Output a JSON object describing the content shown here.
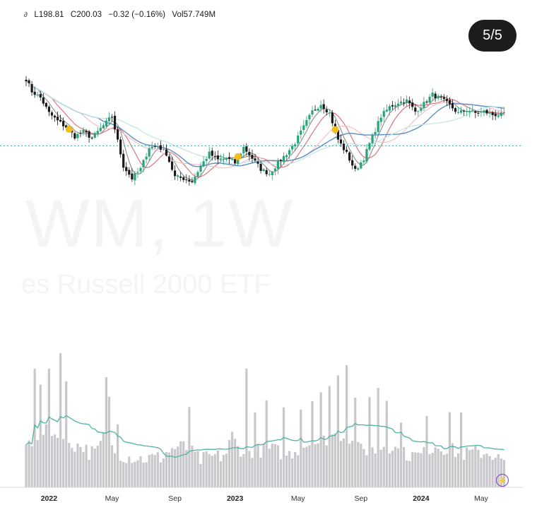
{
  "header": {
    "low": "L198.81",
    "close": "C200.03",
    "change": "−0.32 (−0.16%)",
    "volume": "Vol57.749M"
  },
  "badge": {
    "label": "5/5"
  },
  "watermark": {
    "symbol": "WM, 1W",
    "name": "es Russell 2000 ETF"
  },
  "colors": {
    "up": "#27a27a",
    "down": "#1a1a1a",
    "volume_bar": "#c8c8cc",
    "volume_ma": "#4fb3a2",
    "ma_short": "#8a8a8a",
    "ma_red": "#d76d74",
    "ma_pink": "#f2bcc4",
    "ma_blue": "#5b8fc4",
    "ma_teal": "#bfe6e0",
    "marker": "#f4be1a",
    "dotted": "#3aa89a"
  },
  "chart_data": {
    "type": "candlestick",
    "interval": "1W",
    "x_ticks": [
      "2022",
      "May",
      "Sep",
      "2023",
      "May",
      "Sep",
      "2024",
      "May"
    ],
    "year_ticks": [
      "2022",
      "2023",
      "2024"
    ],
    "price_anchors": [
      [
        0,
        236
      ],
      [
        2,
        228
      ],
      [
        5,
        224
      ],
      [
        8,
        214
      ],
      [
        11,
        209
      ],
      [
        14,
        205
      ],
      [
        17,
        199
      ],
      [
        20,
        202
      ],
      [
        23,
        198
      ],
      [
        26,
        204
      ],
      [
        30,
        212
      ],
      [
        34,
        180
      ],
      [
        37,
        172
      ],
      [
        40,
        178
      ],
      [
        43,
        192
      ],
      [
        46,
        193
      ],
      [
        49,
        188
      ],
      [
        52,
        173
      ],
      [
        55,
        172
      ],
      [
        58,
        170
      ],
      [
        61,
        180
      ],
      [
        64,
        188
      ],
      [
        67,
        184
      ],
      [
        70,
        185
      ],
      [
        73,
        182
      ],
      [
        76,
        192
      ],
      [
        79,
        185
      ],
      [
        82,
        178
      ],
      [
        85,
        175
      ],
      [
        88,
        182
      ],
      [
        91,
        188
      ],
      [
        94,
        195
      ],
      [
        97,
        205
      ],
      [
        100,
        215
      ],
      [
        103,
        220
      ],
      [
        106,
        214
      ],
      [
        109,
        197
      ],
      [
        112,
        188
      ],
      [
        115,
        177
      ],
      [
        118,
        185
      ],
      [
        121,
        199
      ],
      [
        124,
        212
      ],
      [
        127,
        218
      ],
      [
        130,
        221
      ],
      [
        133,
        222
      ],
      [
        136,
        215
      ],
      [
        139,
        220
      ],
      [
        142,
        226
      ],
      [
        145,
        223
      ],
      [
        148,
        219
      ],
      [
        151,
        214
      ],
      [
        154,
        216
      ],
      [
        157,
        214
      ],
      [
        160,
        215
      ],
      [
        163,
        213
      ],
      [
        167,
        213
      ]
    ],
    "markers": [
      15,
      74,
      108
    ],
    "volume_anchors": [
      [
        0,
        34
      ],
      [
        5,
        44
      ],
      [
        9,
        46
      ],
      [
        11,
        40
      ],
      [
        14,
        38
      ],
      [
        17,
        34
      ],
      [
        20,
        33
      ],
      [
        22,
        28
      ],
      [
        25,
        29
      ],
      [
        27,
        42
      ],
      [
        29,
        36
      ],
      [
        31,
        28
      ],
      [
        33,
        26
      ],
      [
        35,
        25
      ],
      [
        38,
        24
      ],
      [
        41,
        23
      ],
      [
        44,
        24
      ],
      [
        47,
        24
      ],
      [
        49,
        28
      ],
      [
        52,
        32
      ],
      [
        55,
        33
      ],
      [
        58,
        28
      ],
      [
        61,
        22
      ],
      [
        63,
        24
      ],
      [
        66,
        25
      ],
      [
        68,
        25
      ],
      [
        70,
        28
      ],
      [
        72,
        42
      ],
      [
        74,
        32
      ],
      [
        77,
        28
      ],
      [
        80,
        30
      ],
      [
        83,
        30
      ],
      [
        86,
        31
      ],
      [
        89,
        28
      ],
      [
        92,
        27
      ],
      [
        95,
        31
      ],
      [
        98,
        35
      ],
      [
        101,
        36
      ],
      [
        104,
        38
      ],
      [
        107,
        42
      ],
      [
        110,
        42
      ],
      [
        113,
        38
      ],
      [
        116,
        31
      ],
      [
        119,
        30
      ],
      [
        122,
        30
      ],
      [
        125,
        34
      ],
      [
        128,
        33
      ],
      [
        131,
        28
      ],
      [
        134,
        26
      ],
      [
        137,
        26
      ],
      [
        140,
        28
      ],
      [
        143,
        34
      ],
      [
        146,
        32
      ],
      [
        149,
        30
      ],
      [
        152,
        26
      ],
      [
        155,
        28
      ],
      [
        158,
        28
      ],
      [
        160,
        28
      ],
      [
        162,
        28
      ],
      [
        164,
        25
      ],
      [
        167,
        20
      ]
    ],
    "volume_spikes": {
      "3": 60,
      "5": 35,
      "8": 50,
      "12": 75,
      "14": 44,
      "28": 46,
      "29": 40,
      "32": 30,
      "57": 37,
      "77": 65,
      "80": 30,
      "84": 38,
      "90": 34,
      "96": 33,
      "100": 40,
      "103": 36,
      "106": 42,
      "109": 53,
      "112": 65,
      "115": 43,
      "120": 44,
      "123": 50,
      "126": 40,
      "131": 30,
      "140": 35,
      "148": 30,
      "152": 33
    },
    "dotted_level": 193
  }
}
